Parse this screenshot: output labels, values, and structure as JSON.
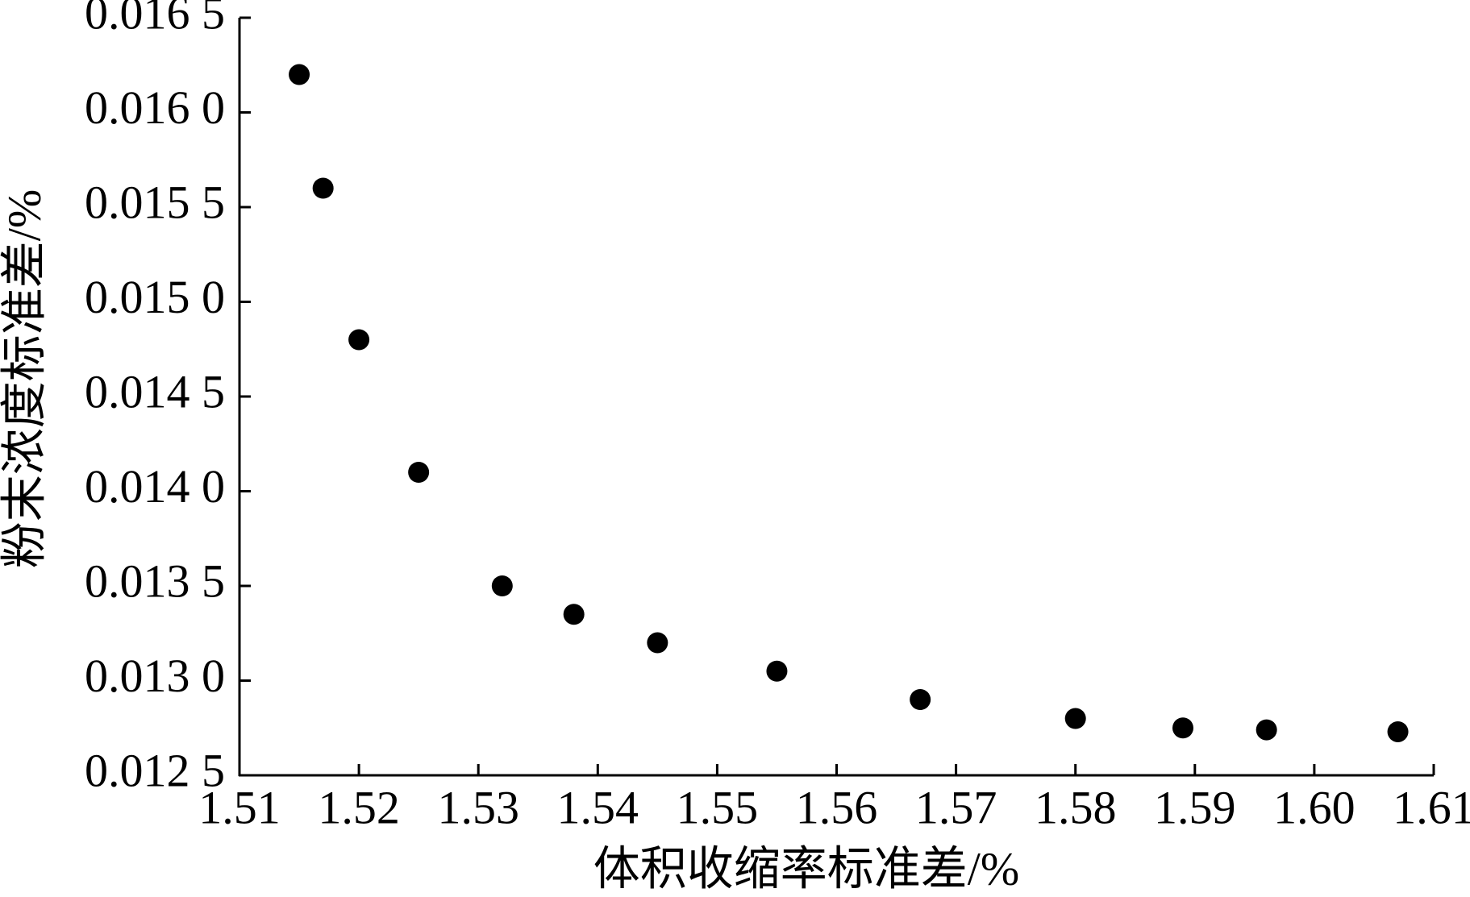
{
  "chart_data": {
    "type": "scatter",
    "xlabel": "体积收缩率标准差/%",
    "ylabel": "粉末浓度标准差/%",
    "x": [
      1.515,
      1.517,
      1.52,
      1.525,
      1.532,
      1.538,
      1.545,
      1.555,
      1.567,
      1.58,
      1.589,
      1.596,
      1.607
    ],
    "values": [
      0.0162,
      0.0156,
      0.0148,
      0.0141,
      0.0135,
      0.01335,
      0.0132,
      0.01305,
      0.0129,
      0.0128,
      0.01275,
      0.01274,
      0.01273
    ],
    "color": "#000000",
    "xlim": [
      1.51,
      1.61
    ],
    "xticks": [
      1.51,
      1.52,
      1.53,
      1.54,
      1.55,
      1.56,
      1.57,
      1.58,
      1.59,
      {
        "value": 1.6,
        "label": "1.60"
      },
      1.61
    ],
    "ylim": [
      0.0125,
      0.0165
    ],
    "yticks": [
      {
        "value": 0.0125,
        "label": "0.012 5"
      },
      {
        "value": 0.013,
        "label": "0.013 0"
      },
      {
        "value": 0.0135,
        "label": "0.013 5"
      },
      {
        "value": 0.014,
        "label": "0.014 0"
      },
      {
        "value": 0.0145,
        "label": "0.014 5"
      },
      {
        "value": 0.015,
        "label": "0.015 0"
      },
      {
        "value": 0.0155,
        "label": "0.015 5"
      },
      {
        "value": 0.016,
        "label": "0.016 0"
      },
      {
        "value": 0.0165,
        "label": "0.016 5"
      }
    ],
    "grid": false
  }
}
